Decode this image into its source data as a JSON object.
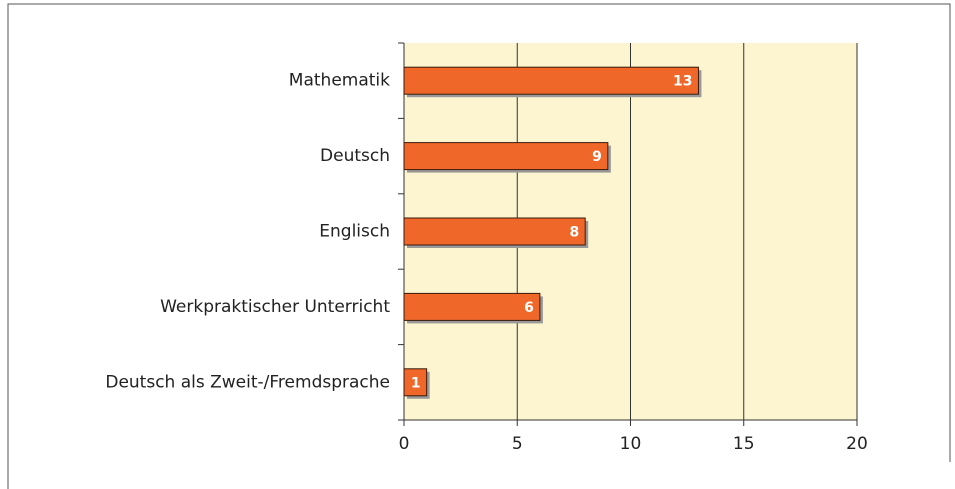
{
  "chart_data": {
    "type": "bar",
    "orientation": "horizontal",
    "categories": [
      "Mathematik",
      "Deutsch",
      "Englisch",
      "Werkpraktischer Unterricht",
      "Deutsch als Zweit-/Fremdsprache"
    ],
    "values": [
      13,
      9,
      8,
      6,
      1
    ],
    "color": "#f0672a",
    "xlim": [
      0,
      20
    ],
    "xticks": [
      0,
      5,
      10,
      15,
      20
    ],
    "grid": true
  }
}
